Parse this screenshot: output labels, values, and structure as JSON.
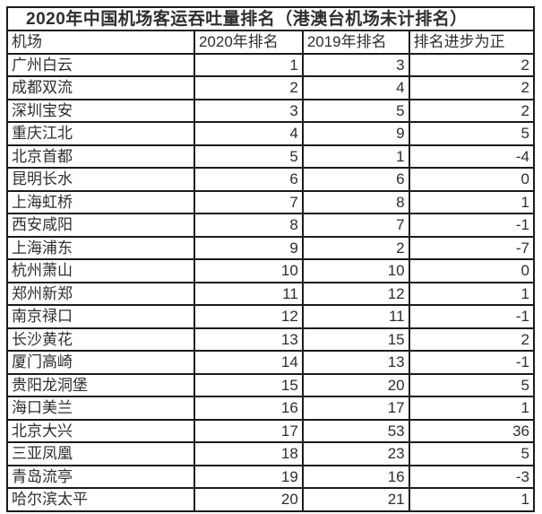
{
  "title": "2020年中国机场客运吞吐量排名（港澳台机场未计排名）",
  "colors": {
    "border": "#1b1b1b",
    "text": "#2e2e2e",
    "background": "#ffffff"
  },
  "chart_data": {
    "type": "table",
    "title": "2020年中国机场客运吞吐量排名（港澳台机场未计排名）",
    "columns": [
      "机场",
      "2020年排名",
      "2019年排名",
      "排名进步为正"
    ],
    "rows": [
      [
        "广州白云",
        1,
        3,
        2
      ],
      [
        "成都双流",
        2,
        4,
        2
      ],
      [
        "深圳宝安",
        3,
        5,
        2
      ],
      [
        "重庆江北",
        4,
        9,
        5
      ],
      [
        "北京首都",
        5,
        1,
        -4
      ],
      [
        "昆明长水",
        6,
        6,
        0
      ],
      [
        "上海虹桥",
        7,
        8,
        1
      ],
      [
        "西安咸阳",
        8,
        7,
        -1
      ],
      [
        "上海浦东",
        9,
        2,
        -7
      ],
      [
        "杭州萧山",
        10,
        10,
        0
      ],
      [
        "郑州新郑",
        11,
        12,
        1
      ],
      [
        "南京禄口",
        12,
        11,
        -1
      ],
      [
        "长沙黄花",
        13,
        15,
        2
      ],
      [
        "厦门高崎",
        14,
        13,
        -1
      ],
      [
        "贵阳龙洞堡",
        15,
        20,
        5
      ],
      [
        "海口美兰",
        16,
        17,
        1
      ],
      [
        "北京大兴",
        17,
        53,
        36
      ],
      [
        "三亚凤凰",
        18,
        23,
        5
      ],
      [
        "青岛流亭",
        19,
        16,
        -3
      ],
      [
        "哈尔滨太平",
        20,
        21,
        1
      ]
    ]
  }
}
